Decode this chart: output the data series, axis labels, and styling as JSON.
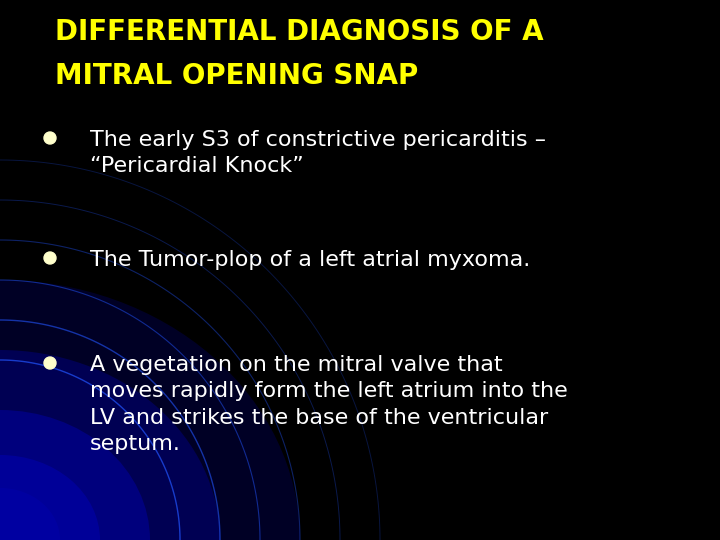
{
  "background_color": "#000000",
  "title_line1": "DIFFERENTIAL DIAGNOSIS OF A",
  "title_line2": "MITRAL OPENING SNAP",
  "title_color": "#ffff00",
  "title_fontsize": 20,
  "bullet_fontsize": 16,
  "bullet_marker_color": "#ffffcc",
  "bullets": [
    {
      "text": "The early S3 of constrictive pericarditis –\n“Pericardial Knock”",
      "color": "#ffffff"
    },
    {
      "text": "The Tumor-plop of a left atrial myxoma.",
      "color": "#ffffff"
    },
    {
      "text": "A vegetation on the mitral valve that\nmoves rapidly form the left atrium into the\nLV and strikes the base of the ventricular\nseptum.",
      "color": "#ffffff"
    }
  ],
  "figsize": [
    7.2,
    5.4
  ],
  "dpi": 100
}
